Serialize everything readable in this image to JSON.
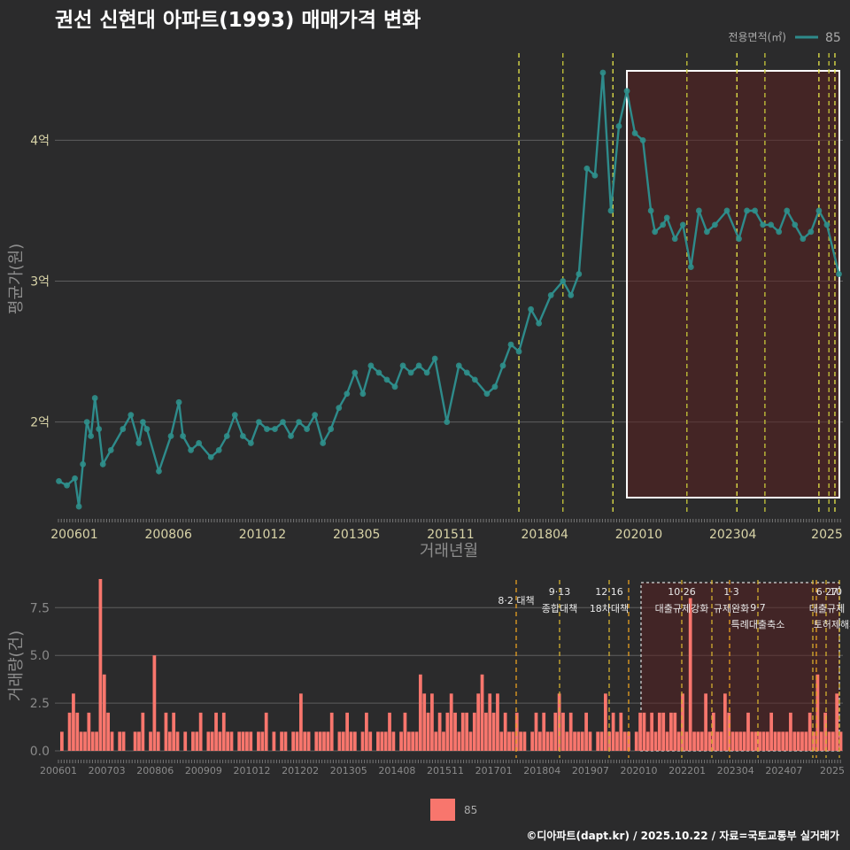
{
  "title": "권선 신현대 아파트(1993) 매매가격 변화",
  "legend_top": {
    "title": "전용면적(㎡)",
    "label": "85"
  },
  "legend_bottom": {
    "label": "85"
  },
  "credit": "©디아파트(dapt.kr) / 2025.10.22 / 자료=국토교통부 실거래가",
  "colors": {
    "line": "#2e8b8b",
    "point": "#2f8f8b",
    "bar": "#f8766d",
    "vline_yellow": "#e8e84a",
    "vline_orange": "#e8a020",
    "highlight": "#5a2020"
  },
  "chart_data": [
    {
      "type": "line",
      "title": "권선 신현대 아파트(1993) 매매가격 변화",
      "xlabel": "거래년월",
      "ylabel": "평균가(원)",
      "x_ticks": [
        "200601",
        "200806",
        "201012",
        "201305",
        "201511",
        "201804",
        "202010",
        "202304",
        "2025"
      ],
      "y_ticks": [
        "2억",
        "3억",
        "4억"
      ],
      "ylim": [
        1.35,
        4.65
      ],
      "xlim": [
        2006.0,
        2025.7
      ],
      "series": [
        {
          "name": "85",
          "x": [
            2006.1,
            2006.3,
            2006.5,
            2006.6,
            2006.7,
            2006.8,
            2006.9,
            2007.0,
            2007.1,
            2007.2,
            2007.4,
            2007.7,
            2007.9,
            2008.1,
            2008.2,
            2008.3,
            2008.6,
            2008.9,
            2009.1,
            2009.2,
            2009.4,
            2009.6,
            2009.9,
            2010.1,
            2010.3,
            2010.5,
            2010.7,
            2010.9,
            2011.1,
            2011.3,
            2011.5,
            2011.7,
            2011.9,
            2012.1,
            2012.3,
            2012.5,
            2012.7,
            2012.9,
            2013.1,
            2013.3,
            2013.5,
            2013.7,
            2013.9,
            2014.1,
            2014.3,
            2014.5,
            2014.7,
            2014.9,
            2015.1,
            2015.3,
            2015.5,
            2015.8,
            2016.1,
            2016.3,
            2016.5,
            2016.8,
            2017.0,
            2017.2,
            2017.4,
            2017.6,
            2017.9,
            2018.1,
            2018.4,
            2018.7,
            2018.9,
            2019.1,
            2019.3,
            2019.5,
            2019.7,
            2019.9,
            2020.1,
            2020.3,
            2020.5,
            2020.7,
            2020.9,
            2021.0,
            2021.2,
            2021.3,
            2021.5,
            2021.7,
            2021.9,
            2022.1,
            2022.3,
            2022.5,
            2022.8,
            2023.1,
            2023.3,
            2023.5,
            2023.7,
            2023.9,
            2024.1,
            2024.3,
            2024.5,
            2024.7,
            2024.9,
            2025.1,
            2025.3,
            2025.6
          ],
          "values": [
            1.58,
            1.55,
            1.6,
            1.4,
            1.7,
            2.0,
            1.9,
            2.17,
            1.95,
            1.7,
            1.8,
            1.95,
            2.05,
            1.85,
            2.0,
            1.95,
            1.65,
            1.9,
            2.14,
            1.9,
            1.8,
            1.85,
            1.75,
            1.8,
            1.9,
            2.05,
            1.9,
            1.85,
            2.0,
            1.95,
            1.95,
            2.0,
            1.9,
            2.0,
            1.95,
            2.05,
            1.85,
            1.95,
            2.1,
            2.2,
            2.35,
            2.2,
            2.4,
            2.35,
            2.3,
            2.25,
            2.4,
            2.35,
            2.4,
            2.35,
            2.45,
            2.0,
            2.4,
            2.35,
            2.3,
            2.2,
            2.25,
            2.4,
            2.55,
            2.5,
            2.8,
            2.7,
            2.9,
            3.0,
            2.9,
            3.05,
            3.8,
            3.75,
            4.48,
            3.5,
            4.1,
            4.35,
            4.05,
            4.0,
            3.5,
            3.35,
            3.4,
            3.45,
            3.3,
            3.4,
            3.1,
            3.5,
            3.35,
            3.4,
            3.5,
            3.3,
            3.5,
            3.5,
            3.4,
            3.4,
            3.35,
            3.5,
            3.4,
            3.3,
            3.35,
            3.5,
            3.4,
            3.05
          ]
        }
      ],
      "vlines": [
        2017.6,
        2018.7,
        2019.95,
        2021.8,
        2023.05,
        2023.75,
        2025.1,
        2025.35,
        2025.5
      ],
      "highlight": {
        "x_from": 2020.3,
        "x_to": 2025.7
      }
    },
    {
      "type": "bar",
      "ylabel": "거래량(건)",
      "x_ticks": [
        "200601",
        "200703",
        "200806",
        "200909",
        "201012",
        "201202",
        "201305",
        "201408",
        "201511",
        "201701",
        "201804",
        "201907",
        "202010",
        "202201",
        "202304",
        "202407",
        "2025"
      ],
      "y_ticks": [
        "0.0",
        "2.5",
        "5.0",
        "7.5"
      ],
      "ylim": [
        0,
        9
      ],
      "series": [
        {
          "name": "85",
          "values": [
            1,
            0,
            2,
            3,
            2,
            1,
            1,
            2,
            1,
            1,
            9,
            4,
            2,
            1,
            0,
            1,
            1,
            0,
            0,
            1,
            1,
            2,
            0,
            1,
            5,
            1,
            0,
            2,
            1,
            2,
            1,
            0,
            1,
            0,
            1,
            1,
            2,
            0,
            1,
            1,
            2,
            1,
            2,
            1,
            1,
            0,
            1,
            1,
            1,
            1,
            0,
            1,
            1,
            2,
            0,
            1,
            0,
            1,
            1,
            0,
            1,
            1,
            3,
            1,
            1,
            0,
            1,
            1,
            1,
            1,
            2,
            0,
            1,
            1,
            2,
            1,
            1,
            0,
            1,
            2,
            1,
            0,
            1,
            1,
            1,
            2,
            1,
            0,
            1,
            2,
            1,
            1,
            1,
            4,
            3,
            2,
            3,
            1,
            2,
            1,
            2,
            3,
            2,
            1,
            2,
            2,
            1,
            2,
            3,
            4,
            2,
            3,
            2,
            3,
            1,
            2,
            1,
            1,
            2,
            1,
            1,
            0,
            1,
            2,
            1,
            2,
            1,
            1,
            2,
            3,
            2,
            1,
            2,
            1,
            1,
            1,
            2,
            1,
            0,
            1,
            1,
            3,
            1,
            2,
            1,
            2,
            1,
            1,
            0,
            1,
            2,
            2,
            1,
            2,
            1,
            2,
            2,
            1,
            2,
            2,
            1,
            3,
            1,
            8,
            1,
            1,
            1,
            3,
            1,
            2,
            1,
            1,
            3,
            2,
            1,
            1,
            1,
            1,
            2,
            1,
            1,
            1,
            1,
            1,
            2,
            1,
            1,
            1,
            1,
            2,
            1,
            1,
            1,
            1,
            2,
            1,
            4,
            1,
            2,
            1,
            1,
            3,
            1
          ]
        }
      ]
    }
  ],
  "annotations": [
    {
      "date": "8·2 대책",
      "name": ""
    },
    {
      "date": "9·13",
      "name": "종합대책"
    },
    {
      "date": "12·16",
      "name": "18차대책"
    },
    {
      "date": "10·26",
      "name": "대출규제강화"
    },
    {
      "date": "1·3",
      "name": "규제완화"
    },
    {
      "date": "9·7",
      "name": "특례대출축소"
    },
    {
      "date": "6·27",
      "name": "대출규제"
    },
    {
      "date": "10",
      "name": "토허제해제"
    }
  ]
}
